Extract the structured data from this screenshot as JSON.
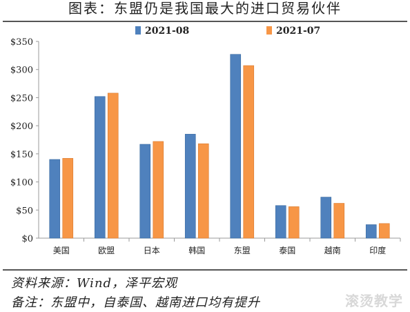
{
  "header": {
    "title": "图表：东盟仍是我国最大的进口贸易伙伴"
  },
  "footer": {
    "source": "资料来源：Wind，泽平宏观",
    "note": "备注：东盟中，自泰国、越南进口均有提升"
  },
  "watermark": "滚烫教学",
  "colors": {
    "series_2021_08": "#4f81bd",
    "series_2021_07": "#f79646",
    "axis": "#999999"
  },
  "chart_data": {
    "type": "bar",
    "title": "",
    "xlabel": "",
    "ylabel": "",
    "ylim": [
      0,
      350
    ],
    "yticks": [
      "$0",
      "$50",
      "$100",
      "$150",
      "$200",
      "$250",
      "$300",
      "$350"
    ],
    "ytick_values": [
      0,
      50,
      100,
      150,
      200,
      250,
      300,
      350
    ],
    "legend_position": "top-center",
    "grid": false,
    "categories": [
      "美国",
      "欧盟",
      "日本",
      "韩国",
      "东盟",
      "泰国",
      "越南",
      "印度"
    ],
    "series": [
      {
        "name": "2021-08",
        "values": [
          140,
          252,
          167,
          185,
          327,
          58,
          73,
          24
        ]
      },
      {
        "name": "2021-07",
        "values": [
          142,
          258,
          172,
          168,
          307,
          56,
          62,
          26
        ]
      }
    ]
  }
}
